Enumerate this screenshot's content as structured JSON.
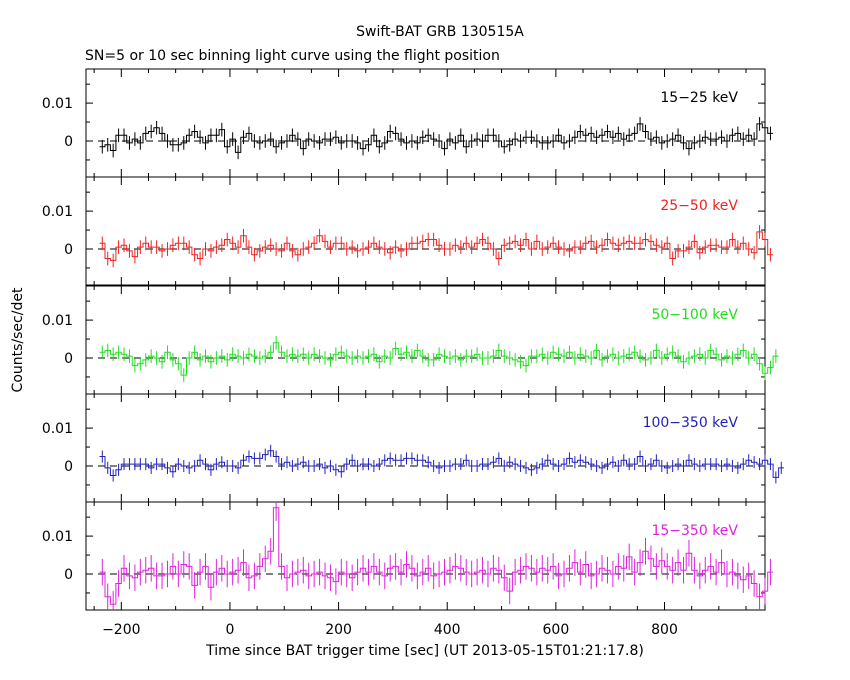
{
  "chart_data": {
    "type": "line",
    "title": "Swift-BAT GRB 130515A",
    "subtitle": "SN=5 or 10 sec binning light curve using the flight position",
    "xlabel": "Time since BAT trigger time [sec] (UT 2013-05-15T01:21:17.8)",
    "ylabel": "Counts/sec/det",
    "xlim": [
      -265,
      985
    ],
    "ylim": [
      -0.0095,
      0.019
    ],
    "x_ticks": [
      -200,
      0,
      200,
      400,
      600,
      800
    ],
    "x_tick_labels": [
      "−200",
      "0",
      "200",
      "400",
      "600",
      "800"
    ],
    "y_ticks": [
      0,
      0.01
    ],
    "y_tick_labels": [
      "0",
      "0.01"
    ],
    "x_start": -240,
    "bin_width": 10,
    "panels": [
      {
        "name": "15-25 keV",
        "label": "15−25 keV",
        "color": "#000000",
        "values": [
          -0.0015,
          -0.001,
          -0.0025,
          0.0015,
          0.0015,
          -0.0005,
          0.0005,
          -0.0005,
          0.002,
          0.0025,
          0.0035,
          0.002,
          0.0,
          -0.001,
          -0.001,
          -0.0005,
          0.0015,
          0.0025,
          0.001,
          -0.0005,
          0.0015,
          0.0015,
          0.003,
          -0.0015,
          0.0005,
          -0.003,
          0.001,
          0.002,
          0.0,
          -0.0005,
          0.0,
          0.0005,
          -0.0015,
          -0.0005,
          0.0,
          0.0015,
          0.0005,
          -0.002,
          0.0005,
          0.0,
          -0.0005,
          0.0005,
          0.0005,
          0.001,
          -0.0005,
          0.0,
          0.0,
          -0.0005,
          -0.002,
          -0.001,
          0.0015,
          -0.0015,
          -0.0005,
          0.0025,
          0.002,
          0.0005,
          -0.0005,
          0.0,
          -0.0005,
          0.001,
          0.0015,
          0.0005,
          0.0,
          -0.002,
          0.0005,
          -0.0005,
          0.0015,
          -0.0015,
          0.0,
          0.0005,
          0.0,
          0.0015,
          0.0015,
          0.0,
          -0.0015,
          -0.001,
          0.0005,
          0.0,
          0.001,
          0.001,
          0.0,
          -0.0005,
          -0.0005,
          0.0,
          0.0015,
          -0.0005,
          0.0,
          0.001,
          0.0025,
          0.0015,
          0.002,
          0.001,
          0.0015,
          0.0025,
          0.001,
          0.002,
          0.0005,
          0.0015,
          0.002,
          0.0045,
          0.0025,
          0.0005,
          0.001,
          -0.0005,
          0.0,
          0.0005,
          0.0015,
          -0.0005,
          -0.002,
          -0.0005,
          0.0,
          0.001,
          0.0005,
          0.0005,
          0.001,
          0.0,
          0.0015,
          0.002,
          0.0005,
          0.0015,
          0.0005,
          0.0045,
          0.0035,
          0.002
        ],
        "err": 0.0018
      },
      {
        "name": "25-50 keV",
        "label": "25−50 keV",
        "color": "#ee2222",
        "values": [
          0.0015,
          -0.0025,
          -0.003,
          0.0005,
          0.001,
          -0.0005,
          -0.002,
          0.0005,
          0.0015,
          0.0005,
          0.0005,
          -0.0005,
          0.0,
          0.001,
          0.0015,
          0.0015,
          0.0005,
          -0.0015,
          -0.0025,
          0.0,
          -0.0005,
          0.0005,
          0.001,
          0.0025,
          0.0015,
          0.0005,
          0.0035,
          0.0005,
          -0.0015,
          -0.0005,
          0.0005,
          0.001,
          0.0,
          -0.0005,
          0.0015,
          -0.0005,
          -0.0015,
          0.0,
          0.0005,
          0.0015,
          0.0035,
          0.002,
          0.0005,
          0.0015,
          0.0015,
          0.0,
          0.0005,
          -0.0005,
          0.0,
          0.0005,
          0.0015,
          0.0005,
          0.0,
          -0.001,
          0.0005,
          -0.0005,
          0.0,
          0.0015,
          0.0015,
          0.002,
          0.0025,
          0.0025,
          0.001,
          0.0,
          0.0,
          0.001,
          0.0005,
          0.0015,
          0.0005,
          0.0015,
          0.0025,
          0.0015,
          0.0,
          -0.0025,
          0.001,
          0.0015,
          0.002,
          0.001,
          0.0025,
          0.0,
          0.002,
          0.0,
          0.0005,
          0.0015,
          0.0005,
          0.0,
          -0.0005,
          0.0005,
          0.0005,
          0.0015,
          0.002,
          0.0005,
          0.001,
          0.0025,
          0.0015,
          0.001,
          0.0015,
          0.002,
          0.0015,
          0.0015,
          0.0025,
          0.002,
          0.001,
          0.0005,
          0.0015,
          -0.0025,
          -0.0005,
          -0.0005,
          0.0005,
          0.002,
          -0.001,
          0.0005,
          0.001,
          0.001,
          0.0005,
          0.0005,
          0.0025,
          0.0005,
          0.0015,
          0.0,
          -0.001,
          0.0045,
          0.0025,
          -0.0015
        ],
        "err": 0.0018
      },
      {
        "name": "50-100 keV",
        "label": "50−100 keV",
        "color": "#22dd22",
        "values": [
          0.0015,
          0.002,
          0.001,
          0.0015,
          0.001,
          0.0005,
          -0.002,
          -0.0015,
          -0.0005,
          0.0005,
          0.0,
          -0.001,
          0.0015,
          -0.0005,
          -0.0015,
          -0.0045,
          0.0,
          0.0015,
          -0.0005,
          0.0005,
          -0.001,
          0.0,
          0.0005,
          -0.0005,
          0.001,
          0.0005,
          0.0,
          0.001,
          0.0005,
          0.0,
          0.0005,
          0.0015,
          0.004,
          0.0015,
          0.0005,
          0.001,
          0.0005,
          0.001,
          0.0,
          0.001,
          0.0005,
          0.0,
          -0.0005,
          0.001,
          0.0015,
          0.0005,
          0.0,
          0.0005,
          0.0,
          0.0005,
          0.001,
          -0.001,
          0.0005,
          0.0,
          0.0025,
          0.001,
          0.0015,
          0.0005,
          0.002,
          0.0005,
          -0.0005,
          -0.0005,
          0.001,
          0.0005,
          0.0,
          0.0005,
          -0.0005,
          0.0005,
          0.0005,
          0.001,
          0.0,
          0.0,
          0.0005,
          0.002,
          0.0005,
          0.0,
          -0.0005,
          -0.001,
          -0.002,
          0.0005,
          0.0005,
          0.001,
          0.0,
          0.0015,
          0.001,
          0.0005,
          0.0015,
          0.0,
          0.001,
          0.0005,
          0.0,
          0.002,
          -0.0005,
          0.0005,
          0.001,
          0.0,
          0.0005,
          0.001,
          0.0015,
          0.0005,
          -0.0005,
          0.0,
          0.002,
          0.0,
          0.001,
          0.0015,
          0.0005,
          -0.001,
          0.0,
          0.0005,
          0.001,
          0.0,
          0.002,
          0.001,
          -0.0005,
          0.0005,
          0.0,
          0.001,
          0.002,
          0.0,
          0.001,
          -0.0015,
          -0.004,
          -0.0025,
          0.0005
        ],
        "err": 0.0018
      },
      {
        "name": "100-350 keV",
        "label": "100−350 keV",
        "color": "#2222bb",
        "values": [
          0.0025,
          -0.0005,
          -0.0025,
          -0.001,
          0.0005,
          0.0005,
          0.0005,
          0.0005,
          0.0005,
          -0.0005,
          0.0005,
          0.0005,
          -0.0005,
          -0.0015,
          0.0005,
          0.0,
          -0.0005,
          0.0,
          0.0015,
          0.0005,
          -0.001,
          0.0005,
          0.001,
          0.0,
          0.0,
          -0.0005,
          0.0015,
          0.0025,
          0.002,
          0.002,
          0.003,
          0.004,
          0.0025,
          0.0005,
          0.001,
          0.0,
          0.0005,
          0.001,
          0.0,
          0.0,
          0.0005,
          -0.0005,
          0.0,
          -0.001,
          -0.0015,
          0.0005,
          0.0015,
          0.0,
          0.0005,
          0.0005,
          0.0,
          0.0005,
          0.0015,
          0.002,
          0.0015,
          0.0015,
          0.002,
          0.002,
          0.0015,
          0.0015,
          0.001,
          0.0,
          -0.0005,
          0.0,
          0.0,
          0.0005,
          0.0005,
          0.0015,
          0.0,
          0.0,
          0.0005,
          0.0005,
          0.001,
          0.002,
          0.0,
          0.001,
          0.0005,
          0.0,
          -0.0005,
          -0.001,
          -0.0005,
          0.0005,
          0.0015,
          0.0005,
          0.0,
          0.0005,
          0.002,
          0.001,
          0.0015,
          0.001,
          0.0005,
          0.0,
          -0.0005,
          0.0005,
          0.001,
          0.0,
          0.0015,
          0.0005,
          0.0005,
          0.0025,
          0.0,
          0.0005,
          0.0015,
          0.0,
          -0.0005,
          0.0,
          0.0005,
          0.0,
          0.0015,
          0.0005,
          0.0,
          0.0005,
          0.0005,
          0.0005,
          0.0,
          0.0005,
          0.0,
          -0.0005,
          0.0005,
          0.0015,
          0.001,
          0.0005,
          0.0015,
          0.0005,
          -0.003,
          -0.0005
        ],
        "err": 0.0016
      },
      {
        "name": "15-350 keV",
        "label": "15−350 keV",
        "color": "#dd22dd",
        "values": [
          0.0005,
          -0.006,
          -0.008,
          -0.0025,
          0.0015,
          -0.0005,
          -0.001,
          0.0005,
          0.001,
          0.0015,
          -0.0005,
          -0.0005,
          0.0,
          0.002,
          0.0,
          0.0025,
          0.002,
          -0.003,
          0.0005,
          0.002,
          -0.0035,
          0.0005,
          0.0015,
          0.0,
          0.0005,
          0.001,
          0.003,
          -0.001,
          -0.0005,
          0.002,
          0.004,
          0.006,
          0.0175,
          0.002,
          -0.001,
          0.0,
          0.0005,
          0.001,
          -0.0005,
          0.0,
          0.0005,
          -0.0005,
          -0.001,
          -0.002,
          0.0005,
          0.0,
          -0.001,
          0.0005,
          0.0015,
          0.0005,
          0.002,
          0.0005,
          -0.0005,
          0.0015,
          0.002,
          0.0005,
          0.0025,
          0.0015,
          -0.0005,
          0.0005,
          0.0015,
          -0.0005,
          0.0,
          0.0005,
          0.001,
          0.002,
          0.0015,
          0.0005,
          0.0,
          0.0005,
          0.001,
          0.0,
          0.0015,
          0.001,
          -0.001,
          -0.0045,
          0.0005,
          0.001,
          0.002,
          0.0015,
          0.0005,
          0.0015,
          0.001,
          0.002,
          -0.0005,
          0.0,
          0.0015,
          0.003,
          0.0005,
          0.0025,
          -0.0005,
          0.0,
          0.0015,
          0.001,
          0.0,
          0.002,
          0.0015,
          0.0045,
          0.0005,
          0.003,
          0.006,
          0.004,
          0.002,
          0.0035,
          0.002,
          0.001,
          0.003,
          0.001,
          0.0055,
          0.001,
          -0.0005,
          0.001,
          0.002,
          0.0005,
          0.003,
          0.0,
          0.0005,
          -0.0005,
          -0.0015,
          -0.0005,
          -0.0025,
          -0.006,
          -0.0045,
          0.0005
        ],
        "err": 0.0035
      }
    ]
  }
}
